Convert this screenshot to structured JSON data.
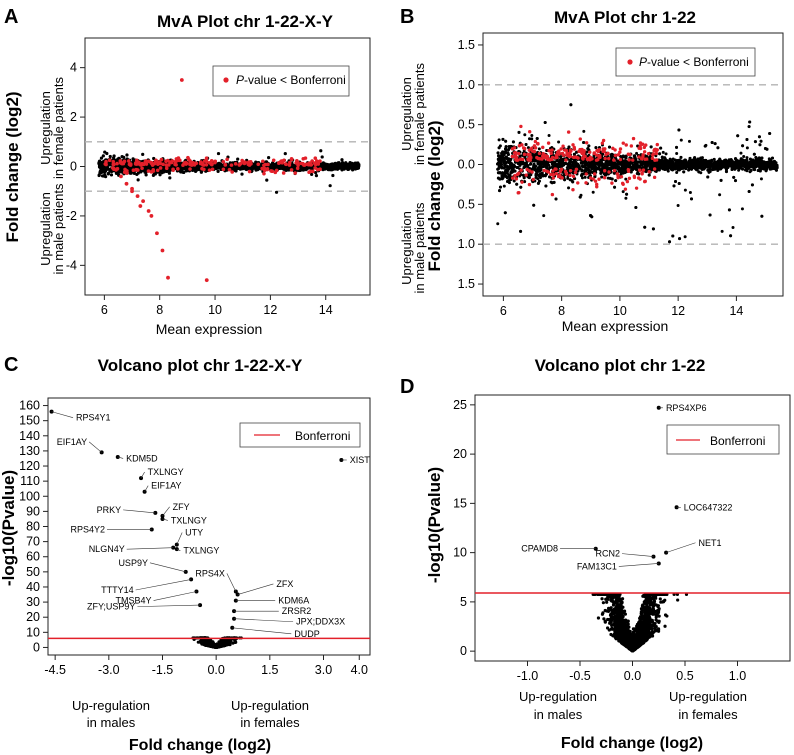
{
  "panels": {
    "A": "A",
    "B": "B",
    "C": "C",
    "D": "D"
  },
  "chart_data": [
    {
      "id": "A",
      "type": "scatter",
      "title": "MvA Plot chr 1-22-X-Y",
      "xlabel": "Mean expression",
      "ylabel": "Fold change (log2)",
      "xlim": [
        5.3,
        15.6
      ],
      "ylim": [
        -5.2,
        5.2
      ],
      "xticks": [
        6,
        8,
        10,
        12,
        14
      ],
      "xtick_labels": [
        "6",
        "8",
        "10",
        "12",
        "14"
      ],
      "yticks": [
        4,
        2,
        0,
        -2,
        -4
      ],
      "ytick_labels": [
        "4",
        "2",
        "0",
        "-2",
        "-4"
      ],
      "hlines": [
        1,
        -1
      ],
      "legend": "P-value < Bonferroni",
      "legend_italic": "P",
      "legend_rest": "-value < Bonferroni",
      "direction_up": [
        "Upregulation",
        "in female patients"
      ],
      "direction_down": [
        "Upregulation",
        "in male patients"
      ],
      "highlight_points": [
        [
          8.8,
          3.5
        ],
        [
          6.6,
          -0.4
        ],
        [
          6.8,
          -0.7
        ],
        [
          7.0,
          -0.9
        ],
        [
          7.2,
          -1.2
        ],
        [
          7.3,
          -1.6
        ],
        [
          7.6,
          -1.8
        ],
        [
          7.7,
          -2.0
        ],
        [
          7.9,
          -2.7
        ],
        [
          8.1,
          -3.4
        ],
        [
          8.3,
          -4.5
        ],
        [
          9.7,
          -4.6
        ],
        [
          7.4,
          -1.4
        ],
        [
          7.0,
          -1.0
        ]
      ]
    },
    {
      "id": "B",
      "type": "scatter",
      "title": "MvA Plot chr 1-22",
      "xlabel": "Mean expression",
      "ylabel": "Fold change (log2)",
      "xlim": [
        5.3,
        15.6
      ],
      "ylim": [
        -1.65,
        1.65
      ],
      "xticks": [
        6,
        8,
        10,
        12,
        14
      ],
      "xtick_labels": [
        "6",
        "8",
        "10",
        "12",
        "14"
      ],
      "yticks": [
        1.5,
        1.0,
        0.5,
        0.0,
        -0.5,
        -1.0,
        -1.5
      ],
      "ytick_labels": [
        "1.5",
        "1.0",
        "0.5",
        "0.0",
        "0.5",
        "1.0",
        "1.5"
      ],
      "hlines": [
        1.0,
        -1.0
      ],
      "legend": "P-value < Bonferroni",
      "legend_italic": "P",
      "legend_rest": "-value < Bonferroni",
      "direction_up": [
        "Upregulation",
        "in female patients"
      ],
      "direction_down": [
        "Upregulation",
        "in male patients"
      ]
    },
    {
      "id": "C",
      "type": "scatter",
      "title": "Volcano plot chr 1-22-X-Y",
      "xlabel": "Fold change (log2)",
      "ylabel": "-log10(Pvalue)",
      "xlim": [
        -4.7,
        4.3
      ],
      "ylim": [
        -5,
        165
      ],
      "xticks": [
        -4.5,
        -3.0,
        -1.5,
        0.0,
        1.5,
        3.0,
        4.0
      ],
      "xtick_labels": [
        "-4.5",
        "-3.0",
        "-1.5",
        "0.0",
        "1.5",
        "3.0",
        "4.0"
      ],
      "yticks": [
        0,
        10,
        20,
        30,
        40,
        50,
        60,
        70,
        80,
        90,
        100,
        110,
        120,
        130,
        140,
        150,
        160
      ],
      "ytick_labels": [
        "0",
        "10",
        "20",
        "30",
        "40",
        "50",
        "60",
        "70",
        "80",
        "90",
        "100",
        "110",
        "120",
        "130",
        "140",
        "150",
        "160"
      ],
      "threshold": 6.0,
      "legend": "Bonferroni",
      "direction_down": [
        "Up-regulation",
        "in males"
      ],
      "direction_up": [
        "Up-regulation",
        "in females"
      ],
      "genes": [
        {
          "name": "RPS4Y1",
          "x": -4.6,
          "y": 156,
          "dx": 0.6,
          "dy": -4
        },
        {
          "name": "EIF1AY",
          "x": -3.2,
          "y": 129,
          "dx": -0.35,
          "dy": 7
        },
        {
          "name": "KDM5D",
          "x": -2.75,
          "y": 126,
          "dx": 0.15,
          "dy": -1
        },
        {
          "name": "TXLNGY",
          "x": -2.1,
          "y": 112,
          "dx": 0.1,
          "dy": 4
        },
        {
          "name": "EIF1AY",
          "x": -2.0,
          "y": 103,
          "dx": 0.1,
          "dy": 4
        },
        {
          "name": "PRKY",
          "x": -1.7,
          "y": 89,
          "dx": -0.9,
          "dy": 2
        },
        {
          "name": "ZFY",
          "x": -1.5,
          "y": 87,
          "dx": 0.2,
          "dy": 6
        },
        {
          "name": "TXLNGY",
          "x": -1.5,
          "y": 85,
          "dx": 0.15,
          "dy": -1
        },
        {
          "name": "RPS4Y2",
          "x": -1.8,
          "y": 78,
          "dx": -1.25,
          "dy": 0
        },
        {
          "name": "UTY",
          "x": -1.1,
          "y": 68,
          "dx": 0.15,
          "dy": 8
        },
        {
          "name": "NLGN4Y",
          "x": -1.2,
          "y": 66,
          "dx": -1.3,
          "dy": -1
        },
        {
          "name": "TXLNGY",
          "x": -1.1,
          "y": 65,
          "dx": 0.1,
          "dy": -1
        },
        {
          "name": "USP9Y",
          "x": -0.85,
          "y": 50,
          "dx": -1.0,
          "dy": 6
        },
        {
          "name": "TTTY14",
          "x": -0.7,
          "y": 45,
          "dx": -1.55,
          "dy": -7
        },
        {
          "name": "TMSB4Y",
          "x": -0.55,
          "y": 37,
          "dx": -1.2,
          "dy": -6
        },
        {
          "name": "ZFY;USP9Y",
          "x": -0.45,
          "y": 28,
          "dx": -1.75,
          "dy": -1
        },
        {
          "name": "RPS4X",
          "x": 0.55,
          "y": 37,
          "dx": -0.25,
          "dy": 12
        },
        {
          "name": "ZFX",
          "x": 0.6,
          "y": 35,
          "dx": 1.0,
          "dy": 7
        },
        {
          "name": "KDM6A",
          "x": 0.55,
          "y": 31,
          "dx": 1.1,
          "dy": 0
        },
        {
          "name": "ZRSR2",
          "x": 0.5,
          "y": 24,
          "dx": 1.25,
          "dy": 0
        },
        {
          "name": "JPX;DDX3X",
          "x": 0.5,
          "y": 19,
          "dx": 1.65,
          "dy": -2
        },
        {
          "name": "DUDP",
          "x": 0.45,
          "y": 13,
          "dx": 1.65,
          "dy": -4
        },
        {
          "name": "XIST",
          "x": 3.5,
          "y": 124,
          "dx": 0.15,
          "dy": 0
        }
      ]
    },
    {
      "id": "D",
      "type": "scatter",
      "title": "Volcano plot chr 1-22",
      "xlabel": "Fold change (log2)",
      "ylabel": "-log10(Pvalue)",
      "xlim": [
        -1.5,
        1.5
      ],
      "ylim": [
        -1,
        26
      ],
      "xticks": [
        -1.0,
        -0.5,
        0.0,
        0.5,
        1.0
      ],
      "xtick_labels": [
        "-1.0",
        "-0.5",
        "0.0",
        "0.5",
        "1.0"
      ],
      "yticks": [
        0,
        5,
        10,
        15,
        20,
        25
      ],
      "ytick_labels": [
        "0",
        "5",
        "10",
        "15",
        "20",
        "25"
      ],
      "threshold": 5.9,
      "legend": "Bonferroni",
      "direction_down": [
        "Up-regulation",
        "in males"
      ],
      "direction_up": [
        "Up-regulation",
        "in females"
      ],
      "genes": [
        {
          "name": "RPS4XP6",
          "x": 0.25,
          "y": 24.7,
          "dx": 0.04,
          "dy": 0
        },
        {
          "name": "LOC647322",
          "x": 0.42,
          "y": 14.6,
          "dx": 0.04,
          "dy": 0
        },
        {
          "name": "CPAMD8",
          "x": -0.35,
          "y": 10.4,
          "dx": -0.34,
          "dy": 0
        },
        {
          "name": "NET1",
          "x": 0.32,
          "y": 10.0,
          "dx": 0.28,
          "dy": 1.0
        },
        {
          "name": "RCN2",
          "x": 0.2,
          "y": 9.6,
          "dx": -0.3,
          "dy": 0.3
        },
        {
          "name": "FAM13C1",
          "x": 0.25,
          "y": 8.9,
          "dx": -0.38,
          "dy": -0.3
        }
      ]
    }
  ],
  "colors": {
    "points": "#000000",
    "highlight": "#e3202a",
    "threshold_line": "#e3202a",
    "dashed_line": "#b3b3b3"
  }
}
